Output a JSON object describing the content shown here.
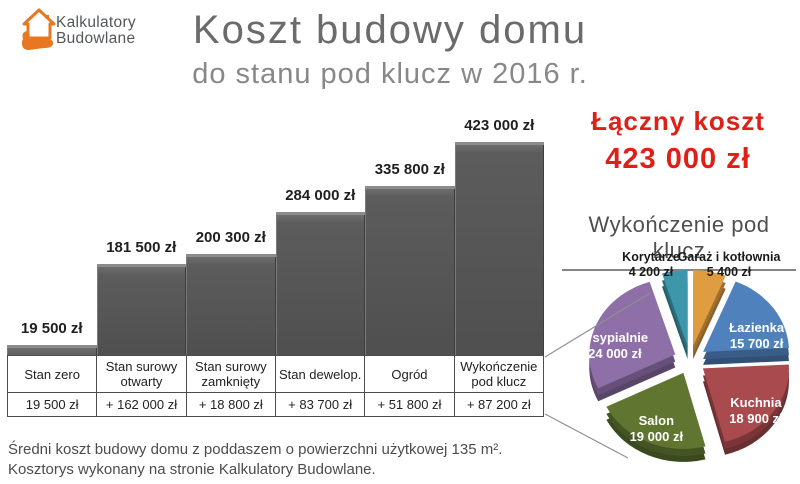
{
  "logo": {
    "line1": "Kalkulatory",
    "line2": "Budowlane",
    "color": "#e87722"
  },
  "header": {
    "title": "Koszt budowy domu",
    "subtitle": "do stanu pod klucz w 2016 r."
  },
  "total": {
    "label": "Łączny koszt",
    "value": "423 000 zł",
    "color": "#dd2018"
  },
  "chart_data": [
    {
      "type": "bar",
      "title": "Koszt budowy domu do stanu pod klucz w 2016 r.",
      "categories": [
        "Stan zero",
        "Stan surowy otwarty",
        "Stan surowy zamknięty",
        "Stan dewelop.",
        "Ogród",
        "Wykończenie pod klucz"
      ],
      "values": [
        19500,
        181500,
        200300,
        284000,
        335800,
        423000
      ],
      "value_labels": [
        "19 500 zł",
        "181 500 zł",
        "200 300 zł",
        "284 000 zł",
        "335 800 zł",
        "423 000 zł"
      ],
      "increment_labels": [
        "19 500 zł",
        "+ 162 000 zł",
        "+ 18 800 zł",
        "+ 83 700 zł",
        "+ 51 800 zł",
        "+ 87 200 zł"
      ],
      "ylim": [
        0,
        423000
      ],
      "bar_color": "#595959",
      "grid": false,
      "legend": false
    },
    {
      "type": "pie",
      "title": "Wykończenie pod klucz",
      "total_value": 87200,
      "slices": [
        {
          "label": "Garaż i kotłownia",
          "value": 5400,
          "value_label": "5 400 zł",
          "color": "#df9c40",
          "label_outside": true
        },
        {
          "label": "Łazienka",
          "value": 15700,
          "value_label": "15 700 zł",
          "color": "#4f81bd",
          "label_outside": false
        },
        {
          "label": "Kuchnia",
          "value": 18900,
          "value_label": "18 900 zł",
          "color": "#a94a4e",
          "label_outside": false
        },
        {
          "label": "Salon",
          "value": 19000,
          "value_label": "19 000 zł",
          "color": "#5f7530",
          "label_outside": false
        },
        {
          "label": "4 sypialnie",
          "value": 24000,
          "value_label": "24 000 zł",
          "color": "#8e6fa8",
          "label_outside": false
        },
        {
          "label": "Korytarze",
          "value": 4200,
          "value_label": "4 200 zł",
          "color": "#3d97ab",
          "label_outside": true
        }
      ],
      "legend": false
    }
  ],
  "footer": {
    "line1": "Średni koszt budowy domu z poddaszem o powierzchni użytkowej 135 m².",
    "line2": "Kosztorys wykonany na stronie Kalkulatory Budowlane."
  }
}
